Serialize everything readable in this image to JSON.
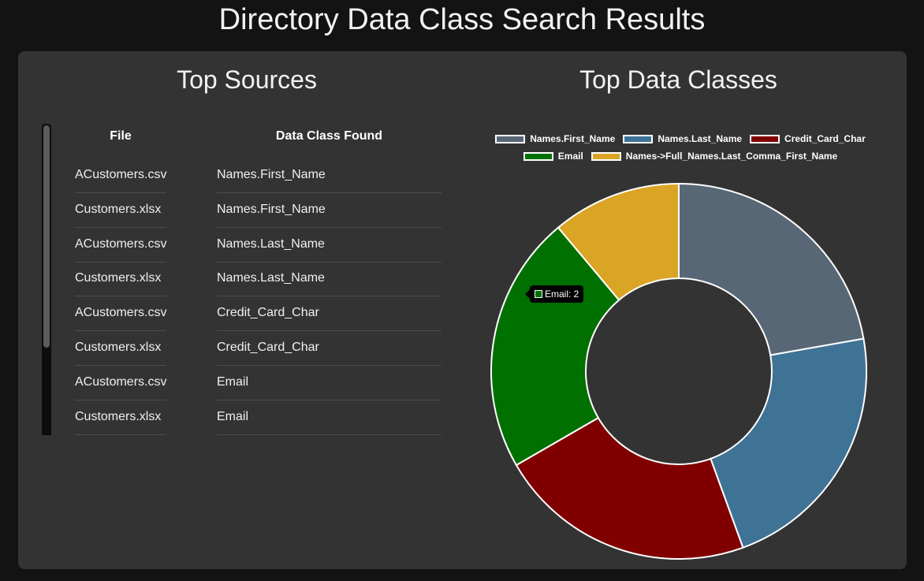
{
  "page": {
    "title": "Directory Data Class Search Results"
  },
  "sources": {
    "heading": "Top Sources",
    "columns": [
      "File",
      "Data Class Found"
    ],
    "rows": [
      {
        "file": "ACustomers.csv",
        "data_class": "Names.First_Name"
      },
      {
        "file": "Customers.xlsx",
        "data_class": "Names.First_Name"
      },
      {
        "file": "ACustomers.csv",
        "data_class": "Names.Last_Name"
      },
      {
        "file": "Customers.xlsx",
        "data_class": "Names.Last_Name"
      },
      {
        "file": "ACustomers.csv",
        "data_class": "Credit_Card_Char"
      },
      {
        "file": "Customers.xlsx",
        "data_class": "Credit_Card_Char"
      },
      {
        "file": "ACustomers.csv",
        "data_class": "Email"
      },
      {
        "file": "Customers.xlsx",
        "data_class": "Email"
      }
    ]
  },
  "data_classes": {
    "heading": "Top Data Classes",
    "tooltip": "Email: 2"
  },
  "chart_data": {
    "type": "pie",
    "variant": "doughnut",
    "categories": [
      "Names.First_Name",
      "Names.Last_Name",
      "Credit_Card_Char",
      "Email",
      "Names->Full_Names.Last_Comma_First_Name"
    ],
    "values": [
      2,
      2,
      2,
      2,
      1
    ],
    "colors": [
      "#586776",
      "#3f7396",
      "#800000",
      "#007000",
      "#daa425"
    ],
    "legend_position": "top"
  }
}
